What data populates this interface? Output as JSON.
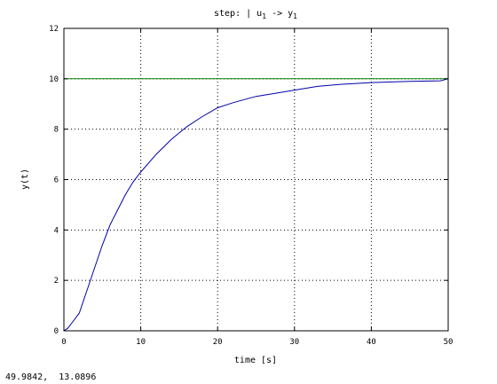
{
  "chart_data": {
    "type": "line",
    "title_prefix": "step: ",
    "title_bar": "|",
    "title_input_base": "u",
    "title_input_sub": "1",
    "title_arrow": "->",
    "title_output_base": "y",
    "title_output_sub": "1",
    "xlabel": "time [s]",
    "ylabel": "y(t)",
    "xlim": [
      0,
      50
    ],
    "ylim": [
      0,
      12
    ],
    "xticks": [
      0,
      10,
      20,
      30,
      40,
      50
    ],
    "yticks": [
      0,
      2,
      4,
      6,
      8,
      10,
      12
    ],
    "grid": true,
    "series": [
      {
        "color": "#0000aa",
        "x": [
          0,
          0.5,
          1,
          2,
          3,
          4,
          5,
          6,
          7,
          8,
          9,
          10,
          12,
          14,
          16,
          18,
          20,
          22,
          25,
          28,
          30,
          33,
          36,
          40,
          45,
          49,
          50
        ],
        "y": [
          0,
          0.1,
          0.3,
          0.7,
          1.6,
          2.5,
          3.4,
          4.2,
          4.8,
          5.4,
          5.9,
          6.3,
          7.0,
          7.6,
          8.1,
          8.5,
          8.85,
          9.05,
          9.3,
          9.45,
          9.55,
          9.7,
          9.78,
          9.85,
          9.9,
          9.92,
          10.0
        ]
      },
      {
        "color": "#008000",
        "x": [
          0,
          50
        ],
        "y": [
          10,
          10
        ]
      }
    ]
  },
  "coordinate_readout": "49.9842,  13.0896"
}
